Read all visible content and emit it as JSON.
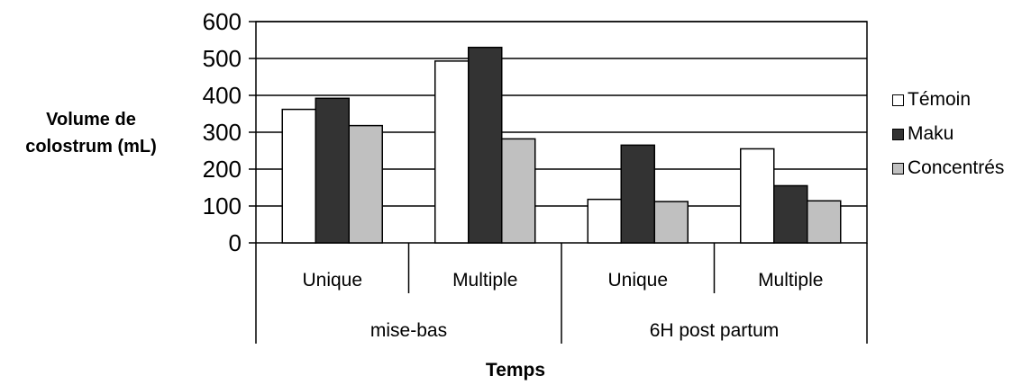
{
  "chart_data": {
    "type": "bar",
    "ylabel_lines": [
      "Volume de",
      "colostrum (mL)"
    ],
    "xlabel": "Temps",
    "ylim": [
      0,
      600
    ],
    "yticks": [
      0,
      100,
      200,
      300,
      400,
      500,
      600
    ],
    "groups": [
      {
        "label": "mise-bas",
        "categories": [
          "Unique",
          "Multiple"
        ]
      },
      {
        "label": "6H post partum",
        "categories": [
          "Unique",
          "Multiple"
        ]
      }
    ],
    "categories": [
      "Unique",
      "Multiple",
      "Unique",
      "Multiple"
    ],
    "series": [
      {
        "name": "Témoin",
        "color": "#ffffff",
        "values": [
          362,
          493,
          118,
          255
        ]
      },
      {
        "name": "Maku",
        "color": "#333333",
        "values": [
          392,
          530,
          265,
          155
        ]
      },
      {
        "name": "Concentrés",
        "color": "#c0c0c0",
        "values": [
          318,
          282,
          112,
          114
        ]
      }
    ],
    "grid": true,
    "legend_position": "right"
  }
}
